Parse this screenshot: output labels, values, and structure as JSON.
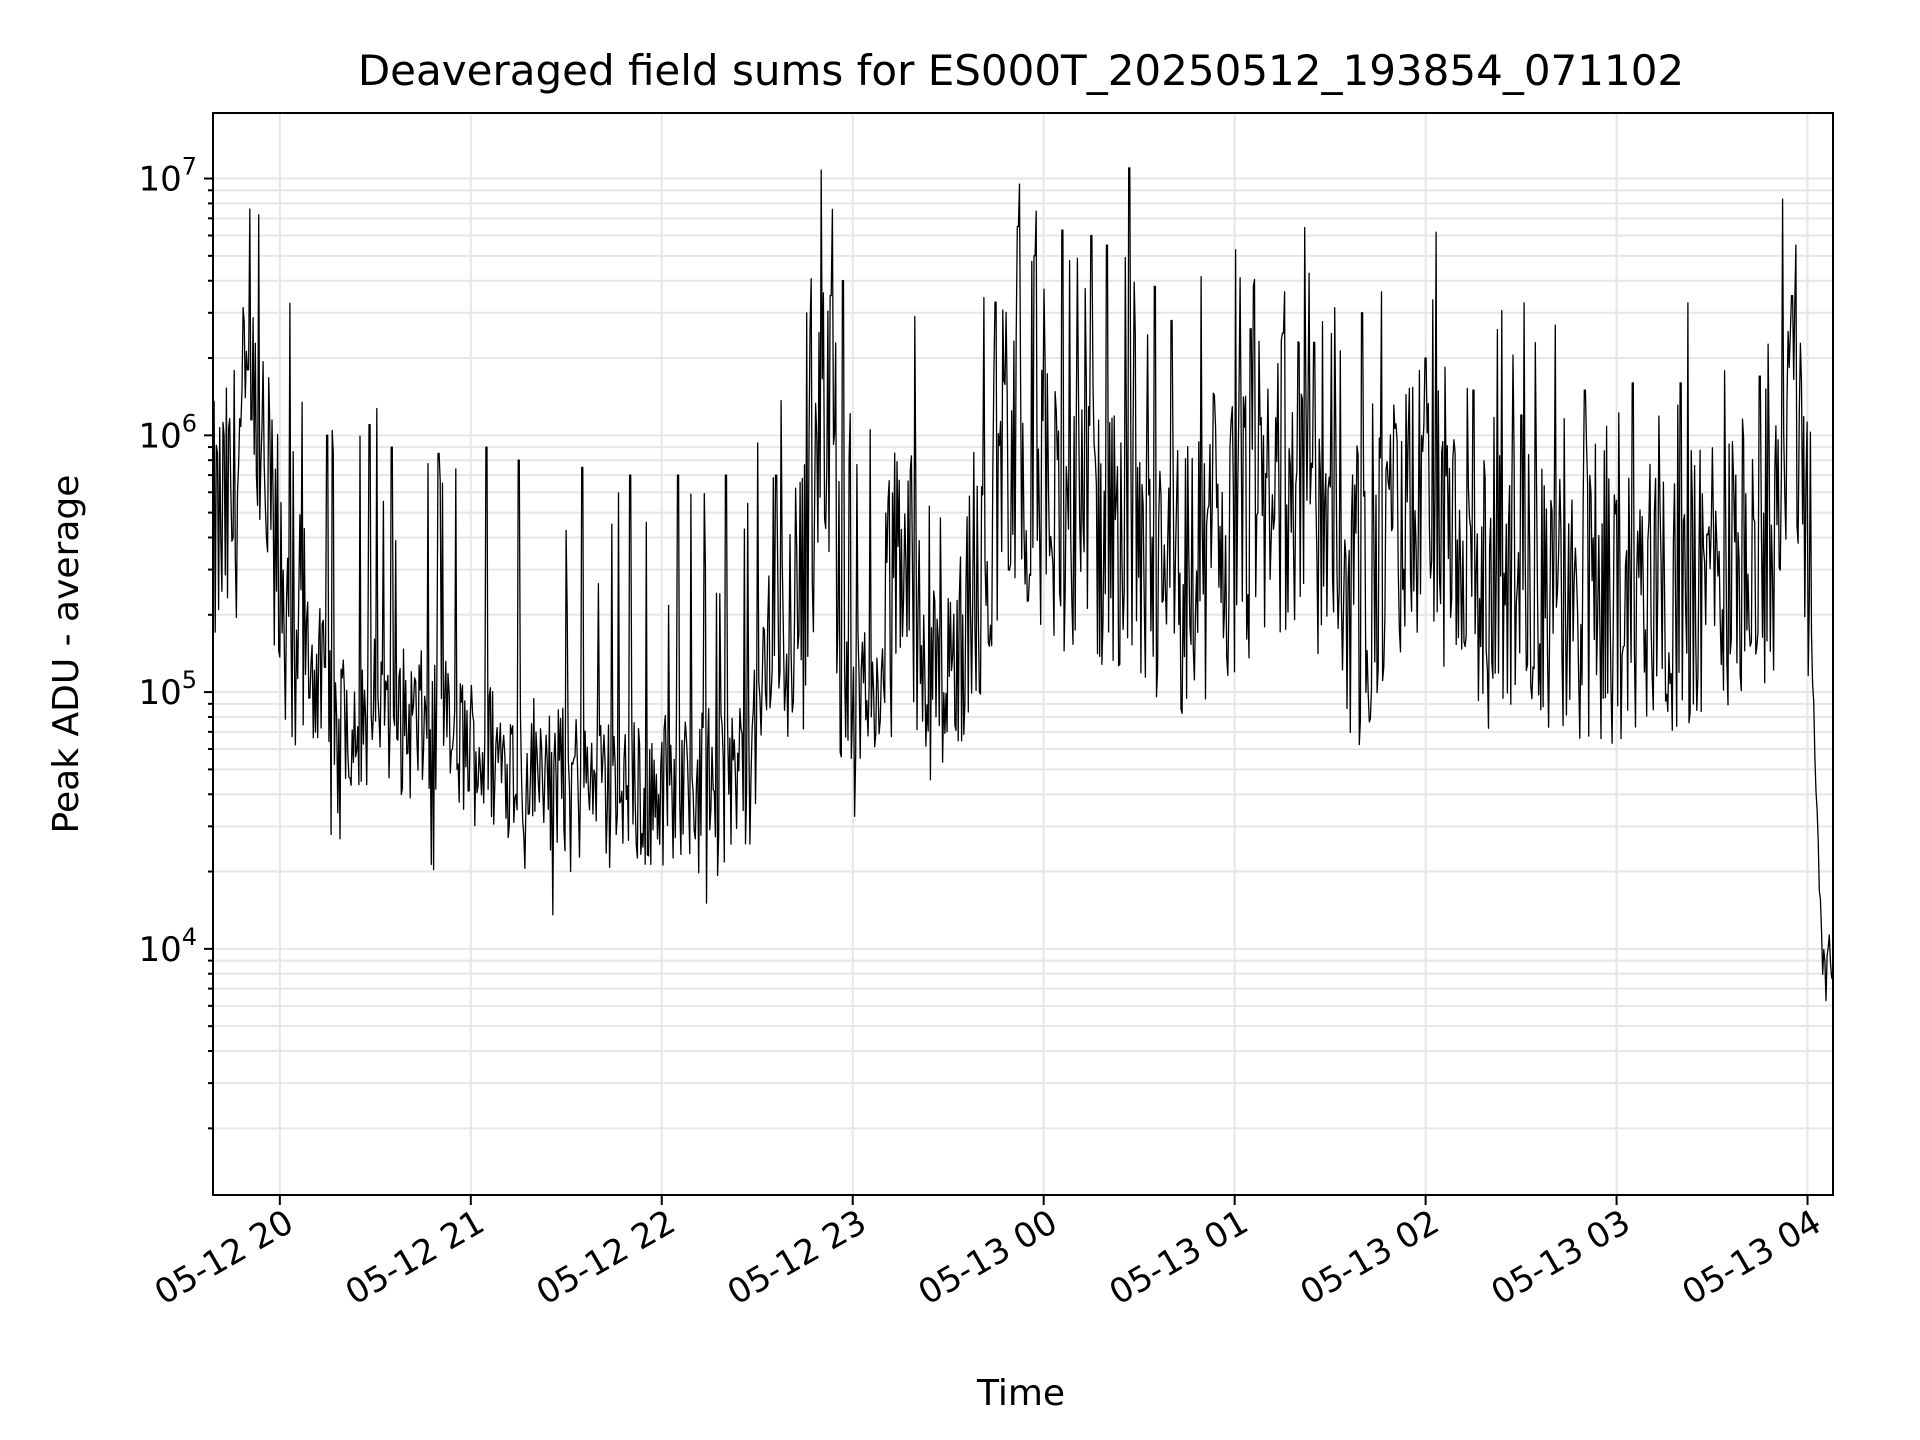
{
  "chart_data": {
    "type": "line",
    "title": "Deaveraged field sums for ES000T_20250512_193854_071102",
    "xlabel": "Time",
    "ylabel": "Peak ADU - average",
    "y_scale": "log",
    "grid": true,
    "line_color": "#000000",
    "xlim": [
      "05-12 19:39",
      "05-13 04:08"
    ],
    "ylim": [
      1100,
      18000000
    ],
    "x_tick_labels": [
      "05-12 20",
      "05-12 21",
      "05-12 22",
      "05-12 23",
      "05-13 00",
      "05-13 01",
      "05-13 02",
      "05-13 03",
      "05-13 04"
    ],
    "y_ticks": [
      {
        "value": 10000,
        "base": "10",
        "exp": "4"
      },
      {
        "value": 100000,
        "base": "10",
        "exp": "5"
      },
      {
        "value": 1000000,
        "base": "10",
        "exp": "6"
      },
      {
        "value": 10000000,
        "base": "10",
        "exp": "7"
      }
    ],
    "series": [
      {
        "x": [
          "05-12 19:39",
          "05-12 19:45",
          "05-12 19:48",
          "05-12 19:52",
          "05-12 19:55",
          "05-12 19:58",
          "05-12 20:02",
          "05-12 20:08",
          "05-12 20:15",
          "05-12 20:22",
          "05-12 20:30",
          "05-12 20:40",
          "05-12 20:50",
          "05-12 21:00",
          "05-12 21:10",
          "05-12 21:20",
          "05-12 21:30",
          "05-12 21:40",
          "05-12 21:50",
          "05-12 22:00",
          "05-12 22:10",
          "05-12 22:20",
          "05-12 22:28",
          "05-12 22:35",
          "05-12 22:45",
          "05-12 22:52",
          "05-12 22:55",
          "05-12 22:58",
          "05-12 23:02",
          "05-12 23:08",
          "05-12 23:15",
          "05-12 23:22",
          "05-12 23:28",
          "05-12 23:32",
          "05-12 23:40",
          "05-12 23:48",
          "05-12 23:55",
          "05-13 00:00",
          "05-13 00:10",
          "05-13 00:20",
          "05-13 00:30",
          "05-13 00:40",
          "05-13 00:50",
          "05-13 01:00",
          "05-13 01:10",
          "05-13 01:20",
          "05-13 01:30",
          "05-13 01:40",
          "05-13 01:50",
          "05-13 02:00",
          "05-13 02:10",
          "05-13 02:20",
          "05-13 02:30",
          "05-13 02:40",
          "05-13 02:50",
          "05-13 03:00",
          "05-13 03:10",
          "05-13 03:20",
          "05-13 03:30",
          "05-13 03:40",
          "05-13 03:46",
          "05-13 03:50",
          "05-13 03:55",
          "05-13 03:58",
          "05-13 04:00",
          "05-13 04:02",
          "05-13 04:05",
          "05-13 04:08"
        ],
        "values": [
          380000,
          500000,
          1000000,
          950000,
          650000,
          400000,
          250000,
          150000,
          90000,
          80000,
          85000,
          75000,
          70000,
          60000,
          55000,
          50000,
          45000,
          42000,
          40000,
          42000,
          45000,
          48000,
          50000,
          200000,
          250000,
          1500000,
          300000,
          100000,
          90000,
          100000,
          400000,
          200000,
          100000,
          150000,
          300000,
          1000000,
          600000,
          600000,
          450000,
          350000,
          300000,
          250000,
          300000,
          400000,
          500000,
          700000,
          300000,
          200000,
          400000,
          600000,
          250000,
          250000,
          250000,
          220000,
          220000,
          200000,
          250000,
          250000,
          300000,
          280000,
          300000,
          450000,
          1200000,
          1400000,
          300000,
          80000,
          8000,
          9000
        ]
      }
    ],
    "spikes": [
      {
        "x": "05-12 19:50",
        "value": 1800000
      },
      {
        "x": "05-12 20:15",
        "value": 1000000
      },
      {
        "x": "05-12 20:28",
        "value": 1100000
      },
      {
        "x": "05-12 20:35",
        "value": 900000
      },
      {
        "x": "05-12 20:50",
        "value": 850000
      },
      {
        "x": "05-12 21:05",
        "value": 900000
      },
      {
        "x": "05-12 21:15",
        "value": 800000
      },
      {
        "x": "05-12 21:35",
        "value": 750000
      },
      {
        "x": "05-12 21:50",
        "value": 700000
      },
      {
        "x": "05-12 22:05",
        "value": 700000
      },
      {
        "x": "05-12 22:20",
        "value": 700000
      },
      {
        "x": "05-12 22:36",
        "value": 700000
      },
      {
        "x": "05-12 22:53",
        "value": 3500000
      },
      {
        "x": "05-12 22:57",
        "value": 4000000
      },
      {
        "x": "05-12 23:45",
        "value": 3300000
      },
      {
        "x": "05-12 23:52",
        "value": 6500000
      },
      {
        "x": "05-12 23:57",
        "value": 5000000
      },
      {
        "x": "05-13 00:06",
        "value": 6300000
      },
      {
        "x": "05-13 00:15",
        "value": 6000000
      },
      {
        "x": "05-13 00:20",
        "value": 5500000
      },
      {
        "x": "05-13 00:27",
        "value": 11000000
      },
      {
        "x": "05-13 00:35",
        "value": 3800000
      },
      {
        "x": "05-13 00:40",
        "value": 2800000
      },
      {
        "x": "05-13 01:05",
        "value": 2600000
      },
      {
        "x": "05-13 01:15",
        "value": 2500000
      },
      {
        "x": "05-13 01:25",
        "value": 2300000
      },
      {
        "x": "05-13 01:40",
        "value": 3000000
      },
      {
        "x": "05-13 02:00",
        "value": 2000000
      },
      {
        "x": "05-13 02:15",
        "value": 1500000
      },
      {
        "x": "05-13 02:30",
        "value": 1200000
      },
      {
        "x": "05-13 02:50",
        "value": 1500000
      },
      {
        "x": "05-13 03:05",
        "value": 1600000
      },
      {
        "x": "05-13 03:20",
        "value": 1600000
      },
      {
        "x": "05-13 03:45",
        "value": 1700000
      },
      {
        "x": "05-13 03:55",
        "value": 3500000
      }
    ]
  }
}
